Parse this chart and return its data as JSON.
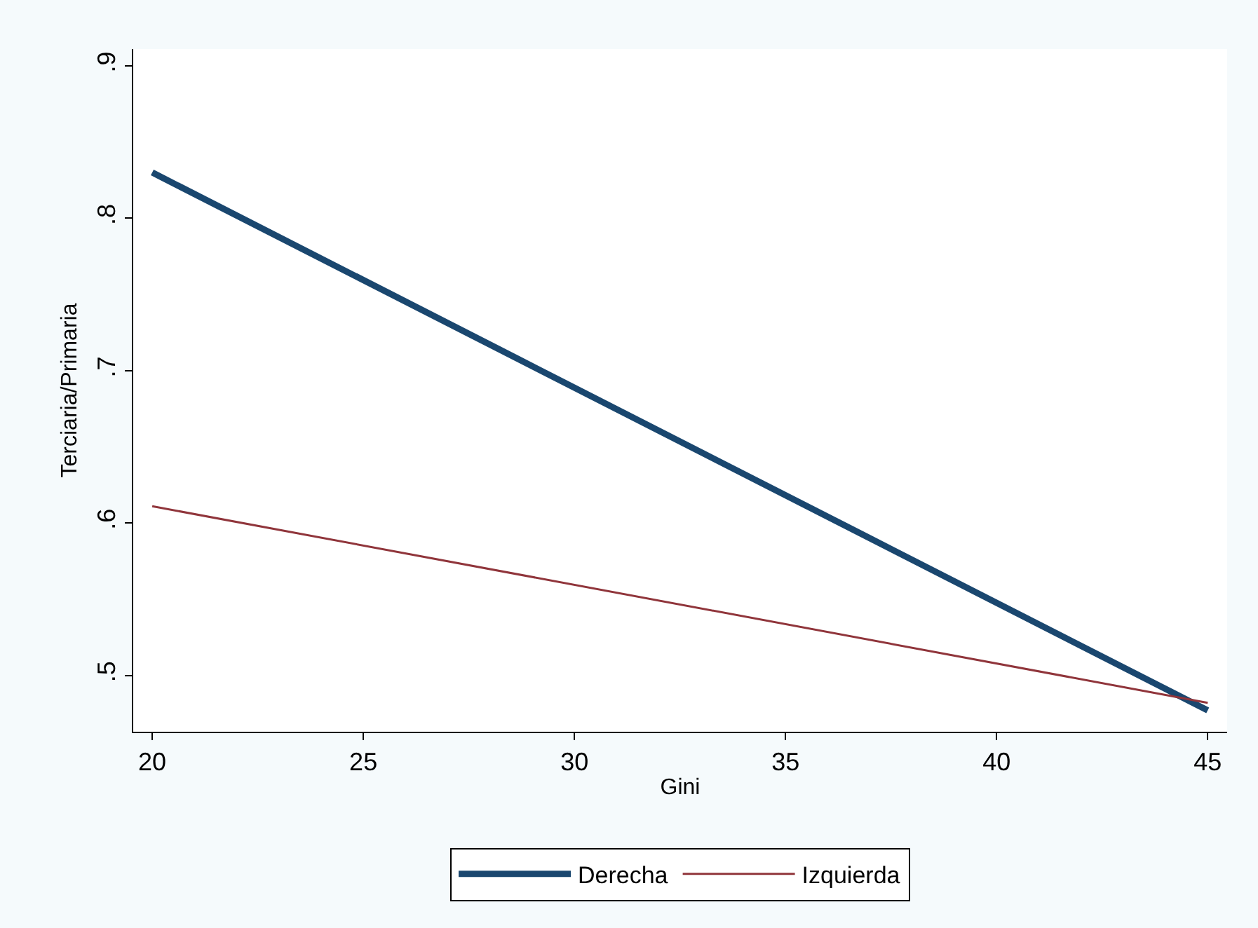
{
  "chart_data": {
    "type": "line",
    "xlabel": "Gini",
    "ylabel": "Terciaria/Primaria",
    "x": [
      20,
      45
    ],
    "series": [
      {
        "name": "Derecha",
        "color": "#1a476f",
        "values": [
          0.83,
          0.477
        ]
      },
      {
        "name": "Izquierda",
        "color": "#90353b",
        "values": [
          0.611,
          0.482
        ]
      }
    ],
    "xlim": [
      19.55,
      45.46
    ],
    "xticks": [
      20,
      25,
      30,
      35,
      40,
      45
    ],
    "ylim": [
      0.463,
      0.911
    ],
    "yticks": [
      {
        "value": 0.5,
        "label": ".5"
      },
      {
        "value": 0.6,
        "label": ".6"
      },
      {
        "value": 0.7,
        "label": ".7"
      },
      {
        "value": 0.8,
        "label": ".8"
      },
      {
        "value": 0.9,
        "label": ".9"
      }
    ],
    "legend": "bottom",
    "marker": "none",
    "line_style": "solid"
  }
}
